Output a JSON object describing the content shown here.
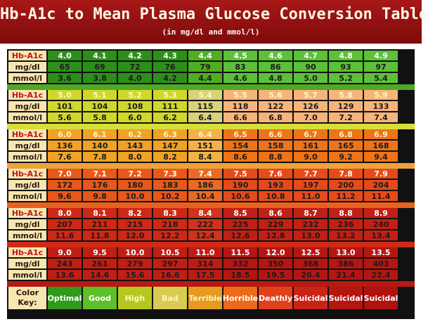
{
  "title": "Hb-A1c to Mean Plasma Glucose Conversion Table",
  "subtitle": "(in mg/dl and mmol/l)",
  "row_labels": {
    "hba1c": "Hb-A1c",
    "mgdl": "mg/dl",
    "mmol": "mmol/l"
  },
  "color_key_label": [
    "Color",
    "Key:"
  ],
  "blocks": [
    {
      "hba1c": [
        "4.0",
        "4.1",
        "4.2",
        "4.3",
        "4.4",
        "4.5",
        "4.6",
        "4.7",
        "4.8",
        "4.9"
      ],
      "mgdl": [
        "65",
        "69",
        "72",
        "76",
        "79",
        "83",
        "86",
        "90",
        "93",
        "97"
      ],
      "mmol": [
        "3.6",
        "3.8",
        "4.0",
        "4.2",
        "4.4",
        "4.6",
        "4.8",
        "5.0",
        "5.2",
        "5.4"
      ]
    },
    {
      "hba1c": [
        "5.0",
        "5.1",
        "5.2",
        "5.3",
        "5.4",
        "5.5",
        "5.6",
        "5.7",
        "5.8",
        "5.9"
      ],
      "mgdl": [
        "101",
        "104",
        "108",
        "111",
        "115",
        "118",
        "122",
        "126",
        "129",
        "133"
      ],
      "mmol": [
        "5.6",
        "5.8",
        "6.0",
        "6.2",
        "6.4",
        "6.6",
        "6.8",
        "7.0",
        "7.2",
        "7.4"
      ]
    },
    {
      "hba1c": [
        "6.0",
        "6.1",
        "6.2",
        "6.3",
        "6.4",
        "6.5",
        "6.6",
        "6.7",
        "6.8",
        "6.9"
      ],
      "mgdl": [
        "136",
        "140",
        "143",
        "147",
        "151",
        "154",
        "158",
        "161",
        "165",
        "168"
      ],
      "mmol": [
        "7.6",
        "7.8",
        "8.0",
        "8.2",
        "8.4",
        "8.6",
        "8.8",
        "9.0",
        "9.2",
        "9.4"
      ]
    },
    {
      "hba1c": [
        "7.0",
        "7.1",
        "7.2",
        "7.3",
        "7.4",
        "7.5",
        "7.6",
        "7.7",
        "7.8",
        "7.9"
      ],
      "mgdl": [
        "172",
        "176",
        "180",
        "183",
        "186",
        "190",
        "193",
        "197",
        "200",
        "204"
      ],
      "mmol": [
        "9.6",
        "9.8",
        "10.0",
        "10.2",
        "10.4",
        "10.6",
        "10.8",
        "11.0",
        "11.2",
        "11.4"
      ]
    },
    {
      "hba1c": [
        "8.0",
        "8.1",
        "8.2",
        "8.3",
        "8.4",
        "8.5",
        "8.6",
        "8.7",
        "8.8",
        "8.9"
      ],
      "mgdl": [
        "207",
        "211",
        "215",
        "218",
        "222",
        "225",
        "229",
        "232",
        "236",
        "240"
      ],
      "mmol": [
        "11.6",
        "11.8",
        "12.0",
        "12.2",
        "12.4",
        "12.6",
        "12.8",
        "13.0",
        "13.2",
        "13.4"
      ]
    },
    {
      "hba1c": [
        "9.0",
        "9.5",
        "10.0",
        "10.5",
        "11.0",
        "11.5",
        "12.0",
        "12.5",
        "13.0",
        "13.5"
      ],
      "mgdl": [
        "243",
        "261",
        "279",
        "297",
        "314",
        "332",
        "350",
        "368",
        "386",
        "403"
      ],
      "mmol": [
        "13.6",
        "14.6",
        "15.6",
        "16.6",
        "17.5",
        "18.5",
        "19.5",
        "20.4",
        "21.4",
        "22.4"
      ]
    }
  ],
  "color_key": [
    {
      "label": "Optimal",
      "color": "#2f9a1c",
      "text_color": "#ffffff"
    },
    {
      "label": "Good",
      "color": "#5fbf2a",
      "text_color": "#ffffff"
    },
    {
      "label": "High",
      "color": "#b6c81f",
      "text_color": "#fff8c0"
    },
    {
      "label": "Bad",
      "color": "#d9cc52",
      "text_color": "#fff3c0"
    },
    {
      "label": "Terrible",
      "color": "#e69a1e",
      "text_color": "#fff2c8"
    },
    {
      "label": "Horrible",
      "color": "#ec6a1a",
      "text_color": "#ffffff"
    },
    {
      "label": "Deathly",
      "color": "#e2401a",
      "text_color": "#ffffff"
    },
    {
      "label": "Suicidal",
      "color": "#c92418",
      "text_color": "#ffffff"
    },
    {
      "label": "Suicidal",
      "color": "#b5160f",
      "text_color": "#ffffff"
    },
    {
      "label": "Suicidal",
      "color": "#b01210",
      "text_color": "#ffffff"
    }
  ],
  "cell_colors": [
    [
      "#2c8f1a",
      "#2c8f1a",
      "#2c8f1a",
      "#2c8f1a",
      "#4fae22",
      "#5cc038",
      "#5cc038",
      "#5cc038",
      "#5cc038",
      "#5cc038"
    ],
    [
      "#cfd82a",
      "#cfd82a",
      "#cfd82a",
      "#cfd82a",
      "#d9d27a",
      "#f7b47a",
      "#f7b47a",
      "#f7b47a",
      "#f7b47a",
      "#f7b47a"
    ],
    [
      "#f0a226",
      "#f0a226",
      "#f0a226",
      "#f0a226",
      "#f3b246",
      "#ed7419",
      "#ed7419",
      "#ed7419",
      "#ed7419",
      "#ed7419"
    ],
    [
      "#e8581a",
      "#e8581a",
      "#e8581a",
      "#e8581a",
      "#ea6a24",
      "#e64a1b",
      "#e64a1b",
      "#e64a1b",
      "#e64a1b",
      "#e64a1b"
    ],
    [
      "#cf2816",
      "#cf2816",
      "#cf2816",
      "#cf2816",
      "#d0321c",
      "#c22015",
      "#c22015",
      "#c22015",
      "#c22015",
      "#c22015"
    ],
    [
      "#c11e14",
      "#c11e14",
      "#c11e14",
      "#c11e14",
      "#bd1c15",
      "#b61612",
      "#b61612",
      "#b61612",
      "#b61612",
      "#b61612"
    ]
  ],
  "text_colors": [
    [
      "#ffffff",
      "#1b1b1b",
      "#1b1b1b"
    ],
    [
      "#fff5c0",
      "#1b1b1b",
      "#1b1b1b"
    ],
    [
      "#fff2c0",
      "#1b1b1b",
      "#1b1b1b"
    ],
    [
      "#ffffff",
      "#1b1b1b",
      "#1b1b1b"
    ],
    [
      "#ffffff",
      "#1b1b1b",
      "#1b1b1b"
    ],
    [
      "#ffffff",
      "#1b1b1b",
      "#1b1b1b"
    ]
  ],
  "separator_colors": [
    "#4fa826",
    "#d8dd3a",
    "#efa23a",
    "#e9611f",
    "#cf2a17",
    "#b81a12"
  ]
}
